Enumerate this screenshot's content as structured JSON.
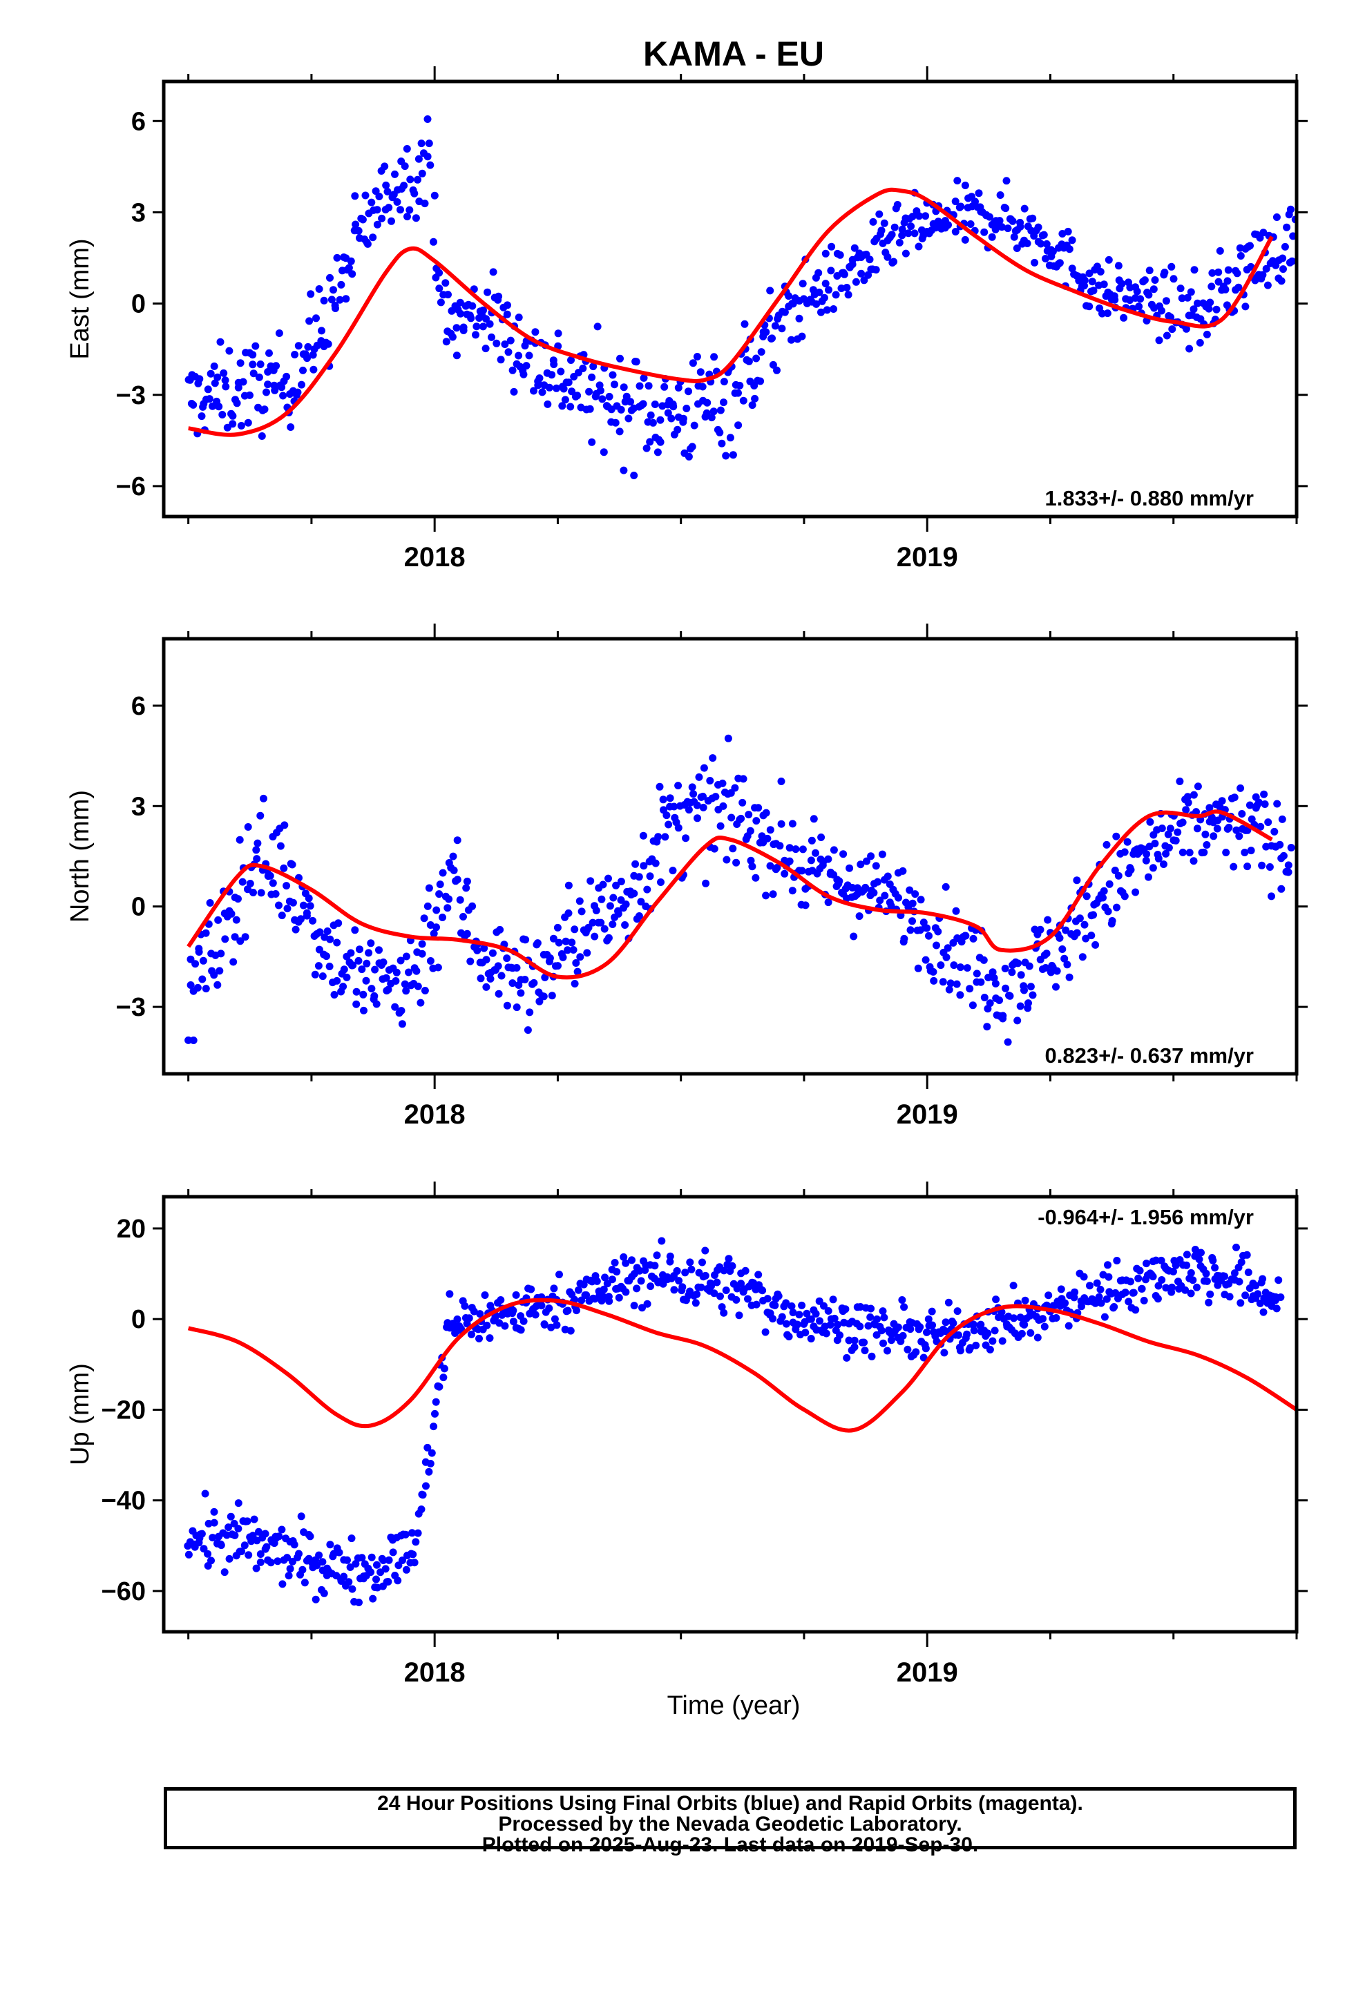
{
  "chart_data": {
    "type": "scatter",
    "title": "KAMA - EU",
    "xlabel": "Time (year)",
    "xlim": [
      2017.45,
      2019.75
    ],
    "x_ticks": [
      2018,
      2019
    ],
    "x_tick_labels": [
      "2018",
      "2019"
    ],
    "marker_color": "#0000ff",
    "fit_color": "#ff0000",
    "panels": [
      {
        "name": "east",
        "ylabel": "East (mm)",
        "ylim": [
          -7,
          7.3
        ],
        "y_ticks": [
          6,
          3,
          0,
          -3,
          -6
        ],
        "y_tick_labels": [
          "6",
          "3",
          "0",
          "−3",
          "−6"
        ],
        "rate_label": "1.833+/- 0.880 mm/yr",
        "rate_position": "bottom-right",
        "fit_curve": {
          "x": [
            2017.5,
            2017.6,
            2017.7,
            2017.8,
            2017.9,
            2017.95,
            2018.0,
            2018.1,
            2018.2,
            2018.3,
            2018.4,
            2018.5,
            2018.55,
            2018.6,
            2018.7,
            2018.8,
            2018.9,
            2018.95,
            2019.0,
            2019.1,
            2019.2,
            2019.3,
            2019.4,
            2019.5,
            2019.6,
            2019.7
          ],
          "y": [
            -4.1,
            -4.3,
            -3.6,
            -1.6,
            1.0,
            1.8,
            1.4,
            0.0,
            -1.2,
            -1.8,
            -2.2,
            -2.5,
            -2.5,
            -2.0,
            0.2,
            2.4,
            3.6,
            3.7,
            3.4,
            2.2,
            1.1,
            0.4,
            -0.2,
            -0.6,
            -0.5,
            2.2
          ]
        },
        "points": [
          {
            "x": 2017.5,
            "y": -3.2,
            "spread": 1.2
          },
          {
            "x": 2017.6,
            "y": -2.8,
            "spread": 1.4
          },
          {
            "x": 2017.7,
            "y": -2.6,
            "spread": 1.3
          },
          {
            "x": 2017.78,
            "y": -0.6,
            "spread": 1.5
          },
          {
            "x": 2017.85,
            "y": 2.3,
            "spread": 1.3
          },
          {
            "x": 2017.92,
            "y": 4.0,
            "spread": 1.1
          },
          {
            "x": 2017.99,
            "y": 4.6,
            "spread": 1.3
          },
          {
            "x": 2018.02,
            "y": -0.8,
            "spread": 1.3
          },
          {
            "x": 2018.1,
            "y": -0.2,
            "spread": 1.3
          },
          {
            "x": 2018.2,
            "y": -1.8,
            "spread": 1.4
          },
          {
            "x": 2018.3,
            "y": -2.8,
            "spread": 1.5
          },
          {
            "x": 2018.4,
            "y": -3.4,
            "spread": 1.6
          },
          {
            "x": 2018.5,
            "y": -3.6,
            "spread": 1.6
          },
          {
            "x": 2018.6,
            "y": -3.0,
            "spread": 1.8
          },
          {
            "x": 2018.68,
            "y": -1.2,
            "spread": 1.5
          },
          {
            "x": 2018.75,
            "y": 0.2,
            "spread": 1.0
          },
          {
            "x": 2018.85,
            "y": 1.1,
            "spread": 1.0
          },
          {
            "x": 2018.95,
            "y": 2.3,
            "spread": 0.9
          },
          {
            "x": 2019.05,
            "y": 2.8,
            "spread": 0.9
          },
          {
            "x": 2019.15,
            "y": 2.9,
            "spread": 0.9
          },
          {
            "x": 2019.25,
            "y": 2.0,
            "spread": 0.9
          },
          {
            "x": 2019.35,
            "y": 0.4,
            "spread": 0.9
          },
          {
            "x": 2019.45,
            "y": 0.1,
            "spread": 0.9
          },
          {
            "x": 2019.55,
            "y": -0.4,
            "spread": 1.1
          },
          {
            "x": 2019.65,
            "y": 1.2,
            "spread": 1.2
          },
          {
            "x": 2019.75,
            "y": 2.2,
            "spread": 1.0
          }
        ]
      },
      {
        "name": "north",
        "ylabel": "North (mm)",
        "ylim": [
          -5,
          8
        ],
        "y_ticks": [
          6,
          3,
          0,
          -3
        ],
        "y_tick_labels": [
          "6",
          "3",
          "0",
          "−3"
        ],
        "rate_label": "0.823+/- 0.637 mm/yr",
        "rate_position": "bottom-right",
        "fit_curve": {
          "x": [
            2017.5,
            2017.6,
            2017.65,
            2017.75,
            2017.85,
            2017.95,
            2018.05,
            2018.15,
            2018.25,
            2018.35,
            2018.45,
            2018.55,
            2018.6,
            2018.7,
            2018.8,
            2018.9,
            2019.0,
            2019.1,
            2019.15,
            2019.25,
            2019.35,
            2019.45,
            2019.55,
            2019.6,
            2019.7
          ],
          "y": [
            -1.2,
            0.9,
            1.2,
            0.5,
            -0.5,
            -0.9,
            -1.0,
            -1.3,
            -2.1,
            -1.7,
            0.1,
            1.8,
            2.0,
            1.3,
            0.3,
            -0.1,
            -0.2,
            -0.6,
            -1.3,
            -0.9,
            1.2,
            2.7,
            2.7,
            2.8,
            2.0
          ]
        },
        "points": [
          {
            "x": 2017.5,
            "y": -2.7,
            "spread": 1.6
          },
          {
            "x": 2017.57,
            "y": -0.9,
            "spread": 1.4
          },
          {
            "x": 2017.63,
            "y": 1.6,
            "spread": 1.5
          },
          {
            "x": 2017.7,
            "y": 1.0,
            "spread": 1.4
          },
          {
            "x": 2017.78,
            "y": -1.2,
            "spread": 1.3
          },
          {
            "x": 2017.86,
            "y": -2.3,
            "spread": 1.4
          },
          {
            "x": 2017.95,
            "y": -2.2,
            "spread": 1.5
          },
          {
            "x": 2018.03,
            "y": 0.9,
            "spread": 1.7
          },
          {
            "x": 2018.1,
            "y": -1.5,
            "spread": 1.2
          },
          {
            "x": 2018.2,
            "y": -2.3,
            "spread": 1.3
          },
          {
            "x": 2018.28,
            "y": -0.9,
            "spread": 1.3
          },
          {
            "x": 2018.38,
            "y": 0.1,
            "spread": 1.4
          },
          {
            "x": 2018.48,
            "y": 2.4,
            "spread": 1.5
          },
          {
            "x": 2018.58,
            "y": 2.9,
            "spread": 1.4
          },
          {
            "x": 2018.66,
            "y": 2.3,
            "spread": 1.4
          },
          {
            "x": 2018.76,
            "y": 1.0,
            "spread": 1.2
          },
          {
            "x": 2018.86,
            "y": 0.6,
            "spread": 1.1
          },
          {
            "x": 2018.96,
            "y": 0.0,
            "spread": 1.1
          },
          {
            "x": 2019.06,
            "y": -1.4,
            "spread": 1.3
          },
          {
            "x": 2019.16,
            "y": -2.4,
            "spread": 1.3
          },
          {
            "x": 2019.26,
            "y": -1.3,
            "spread": 1.2
          },
          {
            "x": 2019.36,
            "y": 0.4,
            "spread": 1.3
          },
          {
            "x": 2019.46,
            "y": 1.7,
            "spread": 1.2
          },
          {
            "x": 2019.56,
            "y": 2.5,
            "spread": 1.2
          },
          {
            "x": 2019.66,
            "y": 2.3,
            "spread": 1.2
          },
          {
            "x": 2019.74,
            "y": 1.6,
            "spread": 1.1
          }
        ]
      },
      {
        "name": "up",
        "ylabel": "Up (mm)",
        "ylim": [
          -69,
          27
        ],
        "y_ticks": [
          20,
          0,
          -20,
          -40,
          -60
        ],
        "y_tick_labels": [
          "20",
          "0",
          "−20",
          "−40",
          "−60"
        ],
        "rate_label": "-0.964+/- 1.956 mm/yr",
        "rate_position": "top-right",
        "fit_curve": {
          "x": [
            2017.5,
            2017.6,
            2017.7,
            2017.8,
            2017.87,
            2017.95,
            2018.05,
            2018.15,
            2018.25,
            2018.35,
            2018.45,
            2018.55,
            2018.65,
            2018.75,
            2018.85,
            2018.95,
            2019.05,
            2019.15,
            2019.25,
            2019.35,
            2019.45,
            2019.55,
            2019.65,
            2019.75
          ],
          "y": [
            -2,
            -5,
            -12,
            -21,
            -23.5,
            -18,
            -4,
            3,
            4,
            1,
            -3,
            -6,
            -12,
            -20,
            -24.5,
            -16,
            -3,
            2.5,
            2,
            -1,
            -5,
            -8,
            -13,
            -20
          ]
        },
        "points": [
          {
            "x": 2017.5,
            "y": -48,
            "spread": 6
          },
          {
            "x": 2017.6,
            "y": -49,
            "spread": 7
          },
          {
            "x": 2017.7,
            "y": -52,
            "spread": 6
          },
          {
            "x": 2017.8,
            "y": -55,
            "spread": 6
          },
          {
            "x": 2017.88,
            "y": -55,
            "spread": 6
          },
          {
            "x": 2017.96,
            "y": -51,
            "spread": 5
          },
          {
            "x": 2018.03,
            "y": -1,
            "spread": 6
          },
          {
            "x": 2018.13,
            "y": 1,
            "spread": 5
          },
          {
            "x": 2018.23,
            "y": 3,
            "spread": 5
          },
          {
            "x": 2018.33,
            "y": 6,
            "spread": 5
          },
          {
            "x": 2018.43,
            "y": 10,
            "spread": 6
          },
          {
            "x": 2018.52,
            "y": 9,
            "spread": 6
          },
          {
            "x": 2018.62,
            "y": 7,
            "spread": 6
          },
          {
            "x": 2018.72,
            "y": 1,
            "spread": 5
          },
          {
            "x": 2018.82,
            "y": -1,
            "spread": 5
          },
          {
            "x": 2018.92,
            "y": -3,
            "spread": 5
          },
          {
            "x": 2019.02,
            "y": -4,
            "spread": 5
          },
          {
            "x": 2019.12,
            "y": -1,
            "spread": 5
          },
          {
            "x": 2019.22,
            "y": 0,
            "spread": 5
          },
          {
            "x": 2019.32,
            "y": 5,
            "spread": 5
          },
          {
            "x": 2019.42,
            "y": 8,
            "spread": 5
          },
          {
            "x": 2019.52,
            "y": 11,
            "spread": 6
          },
          {
            "x": 2019.62,
            "y": 9,
            "spread": 6
          },
          {
            "x": 2019.72,
            "y": 4,
            "spread": 5
          }
        ]
      }
    ]
  },
  "caption": {
    "line1": "24 Hour Positions Using Final Orbits (blue) and Rapid Orbits (magenta).",
    "line2": "Processed by the Nevada Geodetic Laboratory.",
    "line3": "Plotted on 2025-Aug-23. Last data on 2019-Sep-30."
  }
}
